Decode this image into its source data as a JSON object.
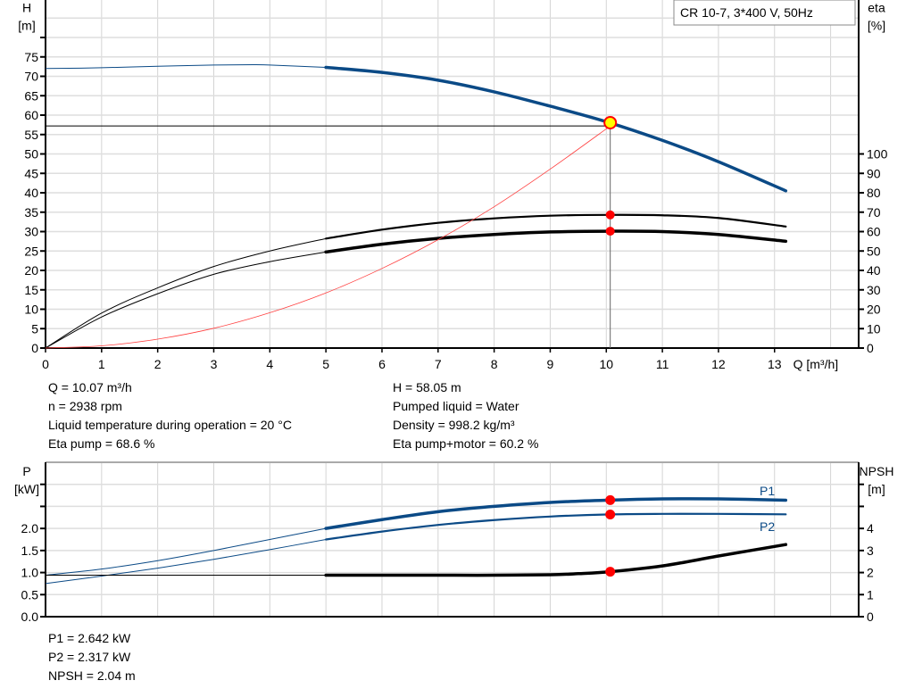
{
  "chart_data": [
    {
      "type": "line",
      "legend_box": "CR 10-7, 3*400 V, 50Hz",
      "xlabel": "Q [m³/h]",
      "xlim": [
        0,
        14.5
      ],
      "xticks": [
        0,
        1,
        2,
        3,
        4,
        5,
        6,
        7,
        8,
        9,
        10,
        11,
        12,
        13
      ],
      "ylabel_left": [
        "H",
        "[m]"
      ],
      "ylim_left": [
        0,
        90
      ],
      "yticks_left": [
        0,
        5,
        10,
        15,
        20,
        25,
        30,
        35,
        40,
        45,
        50,
        55,
        60,
        65,
        70,
        75
      ],
      "ylabel_right": [
        "eta",
        "[%]"
      ],
      "ylim_right": [
        0,
        180
      ],
      "yticks_right": [
        0,
        10,
        20,
        30,
        40,
        50,
        60,
        70,
        80,
        90,
        100
      ],
      "grid": true,
      "series": [
        {
          "name": "H",
          "axis": "left",
          "color": "#0b4a86",
          "x": [
            0,
            1,
            2,
            3,
            3.7,
            4,
            5,
            6,
            7,
            8,
            9,
            10,
            11,
            12,
            13.2
          ],
          "y": [
            72,
            72.2,
            72.6,
            72.9,
            73,
            72.9,
            72.3,
            71,
            69,
            66,
            62.3,
            58.3,
            53.5,
            48,
            40.5
          ],
          "thin_until": 5
        },
        {
          "name": "Eta pump",
          "axis": "right",
          "color": "#000000",
          "x": [
            0,
            1,
            2,
            3,
            4,
            5,
            6,
            7,
            8,
            9,
            10,
            11,
            12,
            13.2
          ],
          "y": [
            0,
            18,
            31,
            42,
            50,
            56.4,
            61,
            64.5,
            66.8,
            68.2,
            68.6,
            68.4,
            67,
            62.6
          ],
          "thin_until": 5
        },
        {
          "name": "Eta pump+motor",
          "axis": "right",
          "color": "#000000",
          "x": [
            0,
            1,
            2,
            3,
            4,
            5,
            6,
            7,
            8,
            9,
            10,
            11,
            12,
            13.2
          ],
          "y": [
            0,
            16,
            28,
            38,
            44.5,
            49.5,
            53.5,
            56.5,
            58.5,
            59.8,
            60.2,
            60,
            58.5,
            55
          ],
          "thin_until": 5
        },
        {
          "name": "System curve",
          "axis": "left",
          "color": "#ff4040",
          "x": [
            0,
            1,
            2,
            3,
            4,
            5,
            6,
            7,
            8,
            9,
            10.07
          ],
          "y": [
            0,
            0.57,
            2.3,
            5.1,
            9.1,
            14.2,
            20.5,
            27.9,
            36.4,
            46.1,
            57.2
          ]
        }
      ],
      "duty_point": {
        "Q": 10.07,
        "H": 58.05,
        "eta_pump": 68.6,
        "eta_total": 60.2,
        "H_line": 57.2
      }
    },
    {
      "type": "line",
      "xlim": [
        0,
        14.5
      ],
      "ylabel_left": [
        "P",
        "[kW]"
      ],
      "ylim_left": [
        0,
        3.5
      ],
      "yticks_left": [
        0.0,
        0.5,
        1.0,
        1.5,
        2.0,
        2.5,
        3.0
      ],
      "yticklabels_left": [
        "0.0",
        "0.5",
        "1.0",
        "1.5",
        "2.0",
        "",
        ""
      ],
      "ylabel_right": [
        "NPSH",
        "[m]"
      ],
      "ylim_right": [
        0,
        7
      ],
      "yticks_right": [
        0,
        1,
        2,
        3,
        4,
        5,
        6
      ],
      "yticklabels_right": [
        "0",
        "1",
        "2",
        "3",
        "4",
        "",
        ""
      ],
      "grid": true,
      "series": [
        {
          "name": "P1",
          "axis": "left",
          "color": "#0b4a86",
          "x": [
            0,
            1,
            2,
            3,
            4,
            5,
            6,
            7,
            8,
            9,
            10,
            11,
            12,
            13.2
          ],
          "y": [
            0.94,
            1.08,
            1.27,
            1.5,
            1.75,
            2.0,
            2.2,
            2.38,
            2.5,
            2.59,
            2.64,
            2.67,
            2.67,
            2.64
          ],
          "thin_until": 5
        },
        {
          "name": "P2",
          "axis": "left",
          "color": "#0b4a86",
          "x": [
            0,
            1,
            2,
            3,
            4,
            5,
            6,
            7,
            8,
            9,
            10,
            11,
            12,
            13.2
          ],
          "y": [
            0.75,
            0.92,
            1.1,
            1.3,
            1.52,
            1.75,
            1.93,
            2.08,
            2.19,
            2.27,
            2.317,
            2.33,
            2.33,
            2.32
          ],
          "thin_until": 5
        },
        {
          "name": "NPSH",
          "axis": "right",
          "color": "#000000",
          "x": [
            0,
            1,
            2,
            3,
            4,
            5,
            6,
            7,
            8,
            9,
            9.5,
            10.07,
            11,
            12,
            13.2
          ],
          "y": [
            1.88,
            1.88,
            1.88,
            1.88,
            1.88,
            1.88,
            1.88,
            1.88,
            1.88,
            1.9,
            1.95,
            2.04,
            2.3,
            2.75,
            3.27
          ],
          "thin_until": 5
        }
      ],
      "duty_point": {
        "Q": 10.07,
        "P1": 2.642,
        "P2": 2.317,
        "NPSH": 2.04
      }
    }
  ],
  "info_top": {
    "left": [
      "Q = 10.07 m³/h",
      "n = 2938 rpm",
      "Liquid temperature during operation = 20 °C",
      "Eta pump = 68.6 %"
    ],
    "right": [
      "H = 58.05 m",
      "Pumped liquid = Water",
      "Density = 998.2 kg/m³",
      "Eta pump+motor = 60.2 %"
    ]
  },
  "info_bottom": [
    "P1 = 2.642 kW",
    "P2 = 2.317 kW",
    "NPSH = 2.04 m"
  ]
}
